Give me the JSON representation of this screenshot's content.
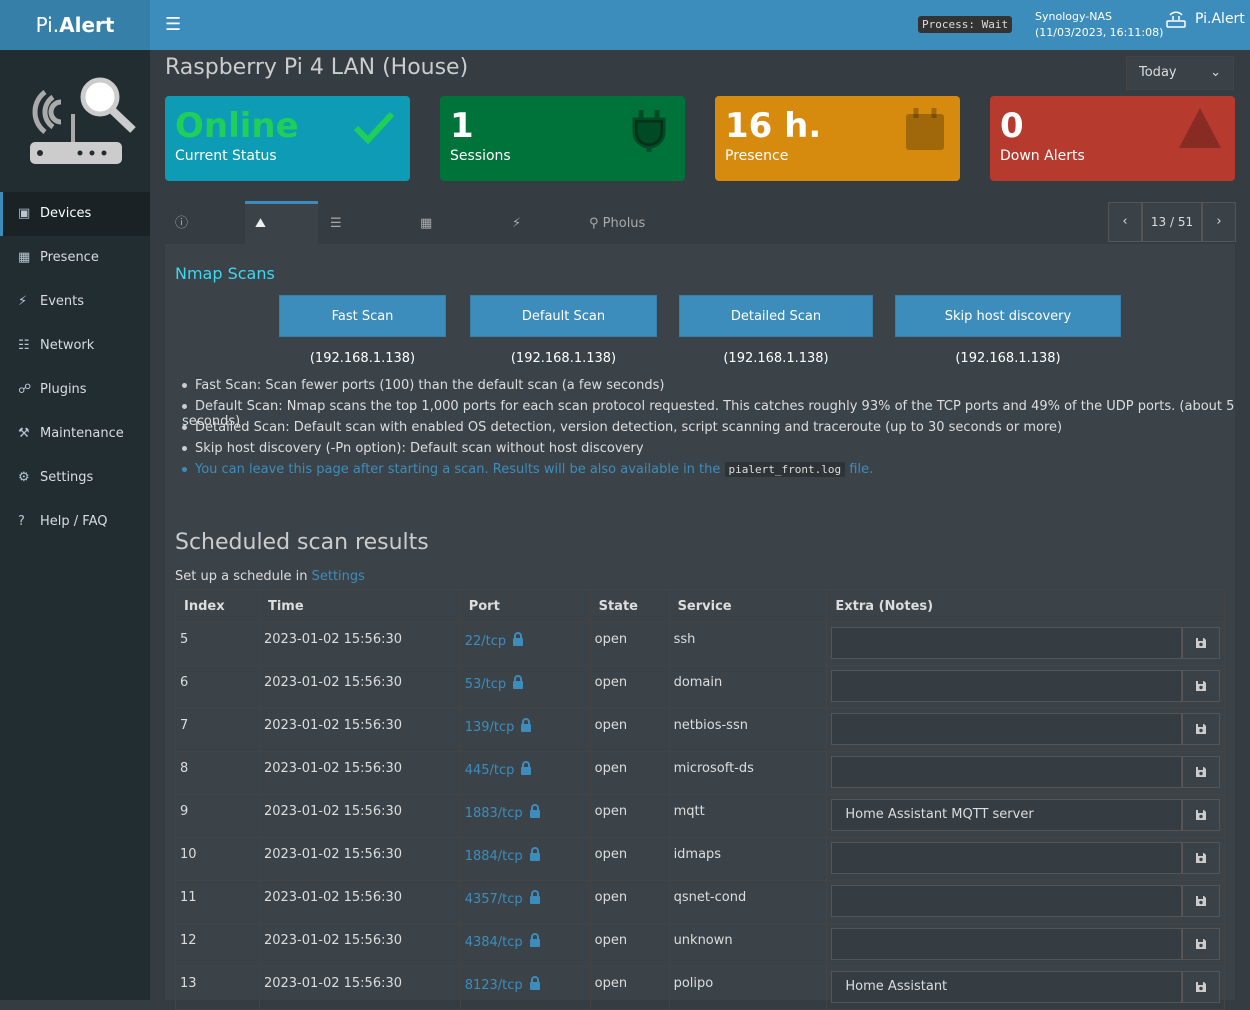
{
  "header": {
    "brand_light": "Pi.",
    "brand_bold": "Alert",
    "process": "Process: Wait",
    "host": "Synology-NAS",
    "time": "(11/03/2023, 16:11:08)",
    "user": "Pi.Alert"
  },
  "sidebar": {
    "items": [
      "Devices",
      "Presence",
      "Events",
      "Network",
      "Plugins",
      "Maintenance",
      "Settings",
      "Help / FAQ"
    ]
  },
  "page": {
    "title": "Raspberry Pi 4 LAN (House)",
    "period": "Today"
  },
  "cards": [
    {
      "value": "Online",
      "label": "Current Status"
    },
    {
      "value": "1",
      "label": "Sessions"
    },
    {
      "value": "16 h.",
      "label": "Presence"
    },
    {
      "value": "0",
      "label": "Down Alerts"
    }
  ],
  "tabs": [
    "Details",
    "Nmap",
    "Sessions",
    "Presence",
    "Events",
    "Pholus"
  ],
  "pager": "13 / 51",
  "nmap": {
    "title": "Nmap Scans",
    "buttons": [
      "Fast Scan (192.168.1.138)",
      "Default Scan (192.168.1.138)",
      "Detailed Scan (192.168.1.138)",
      "Skip host discovery (192.168.1.138)"
    ],
    "notes": [
      "Fast Scan: Scan fewer ports (100) than the default scan (a few seconds)",
      "Default Scan: Nmap scans the top 1,000 ports for each scan protocol requested. This catches roughly 93% of the TCP ports and 49% of the UDP ports. (about 5 seconds)",
      "Detailed Scan: Default scan with enabled OS detection, version detection, script scanning and traceroute (up to 30 seconds or more)",
      "Skip host discovery (-Pn option): Default scan without host discovery"
    ],
    "info_before": "You can leave this page after starting a scan. Results will be also available in the",
    "info_code": "pialert_front.log",
    "info_after": "file."
  },
  "scheduled": {
    "title": "Scheduled scan results",
    "setup_text": "Set up a schedule in",
    "setup_link": "Settings"
  },
  "table": {
    "headers": [
      "Index",
      "Time",
      "Port",
      "State",
      "Service",
      "Extra (Notes)"
    ],
    "rows": [
      [
        "5",
        "2023-01-02 15:56:30",
        "22/tcp",
        "open",
        "ssh",
        ""
      ],
      [
        "6",
        "2023-01-02 15:56:30",
        "53/tcp",
        "open",
        "domain",
        ""
      ],
      [
        "7",
        "2023-01-02 15:56:30",
        "139/tcp",
        "open",
        "netbios-ssn",
        ""
      ],
      [
        "8",
        "2023-01-02 15:56:30",
        "445/tcp",
        "open",
        "microsoft-ds",
        ""
      ],
      [
        "9",
        "2023-01-02 15:56:30",
        "1883/tcp",
        "open",
        "mqtt",
        "Home Assistant MQTT server"
      ],
      [
        "10",
        "2023-01-02 15:56:30",
        "1884/tcp",
        "open",
        "idmaps",
        ""
      ],
      [
        "11",
        "2023-01-02 15:56:30",
        "4357/tcp",
        "open",
        "qsnet-cond",
        ""
      ],
      [
        "12",
        "2023-01-02 15:56:30",
        "4384/tcp",
        "open",
        "unknown",
        ""
      ],
      [
        "13",
        "2023-01-02 15:56:30",
        "8123/tcp",
        "open",
        "polipo",
        "Home Assistant"
      ]
    ]
  }
}
